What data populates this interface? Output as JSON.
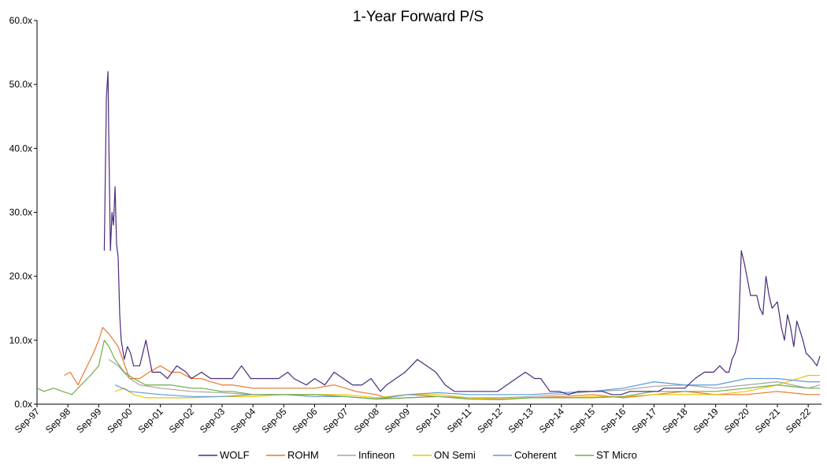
{
  "chart_data": {
    "type": "line",
    "title": "1-Year Forward P/S",
    "xlabel": "",
    "ylabel": "",
    "ylim": [
      0,
      60
    ],
    "yticks": [
      "0.0x",
      "10.0x",
      "20.0x",
      "30.0x",
      "40.0x",
      "50.0x",
      "60.0x"
    ],
    "ytick_values": [
      0,
      10,
      20,
      30,
      40,
      50,
      60
    ],
    "xlim": [
      1997.67,
      2023.1
    ],
    "xticks": [
      "Sep-97",
      "Sep-98",
      "Sep-99",
      "Sep-00",
      "Sep-01",
      "Sep-02",
      "Sep-03",
      "Sep-04",
      "Sep-05",
      "Sep-06",
      "Sep-07",
      "Sep-08",
      "Sep-09",
      "Sep-10",
      "Sep-11",
      "Sep-12",
      "Sep-13",
      "Sep-14",
      "Sep-15",
      "Sep-16",
      "Sep-17",
      "Sep-18",
      "Sep-19",
      "Sep-20",
      "Sep-21",
      "Sep-22"
    ],
    "xtick_values": [
      1997.67,
      1998.67,
      1999.67,
      2000.67,
      2001.67,
      2002.67,
      2003.67,
      2004.67,
      2005.67,
      2006.67,
      2007.67,
      2008.67,
      2009.67,
      2010.67,
      2011.67,
      2012.67,
      2013.67,
      2014.67,
      2015.67,
      2016.67,
      2017.67,
      2018.67,
      2019.67,
      2020.67,
      2021.67,
      2022.67
    ],
    "grid": false,
    "legend_position": "bottom",
    "series": [
      {
        "name": "WOLF",
        "color": "#4B2A7B",
        "x": [
          1999.85,
          1999.92,
          1999.97,
          2000.0,
          2000.05,
          2000.1,
          2000.15,
          2000.2,
          2000.25,
          2000.3,
          2000.35,
          2000.4,
          2000.5,
          2000.6,
          2000.7,
          2000.8,
          2000.9,
          2001.0,
          2001.2,
          2001.4,
          2001.67,
          2001.9,
          2002.2,
          2002.5,
          2002.67,
          2003.0,
          2003.3,
          2003.67,
          2004.0,
          2004.3,
          2004.6,
          2004.9,
          2005.2,
          2005.5,
          2005.8,
          2006.0,
          2006.4,
          2006.67,
          2007.0,
          2007.3,
          2007.6,
          2007.9,
          2008.2,
          2008.5,
          2008.8,
          2009.0,
          2009.3,
          2009.6,
          2009.8,
          2010.0,
          2010.3,
          2010.6,
          2010.9,
          2011.2,
          2011.5,
          2011.8,
          2012.0,
          2012.3,
          2012.6,
          2012.9,
          2013.2,
          2013.5,
          2013.8,
          2014.0,
          2014.3,
          2014.6,
          2014.9,
          2015.2,
          2015.5,
          2015.8,
          2016.0,
          2016.3,
          2016.6,
          2016.9,
          2017.2,
          2017.5,
          2017.8,
          2018.0,
          2018.2,
          2018.4,
          2018.67,
          2019.0,
          2019.3,
          2019.6,
          2019.8,
          2020.0,
          2020.1,
          2020.2,
          2020.3,
          2020.4,
          2020.5,
          2020.6,
          2020.8,
          2021.0,
          2021.1,
          2021.2,
          2021.3,
          2021.4,
          2021.5,
          2021.67,
          2021.8,
          2021.9,
          2022.0,
          2022.1,
          2022.2,
          2022.3,
          2022.5,
          2022.6,
          2022.8,
          2022.95,
          2023.05
        ],
        "values": [
          24,
          48,
          52,
          40,
          24,
          30,
          28,
          34,
          25,
          23,
          14,
          10,
          7,
          9,
          8,
          6,
          6,
          6,
          10,
          5,
          5,
          4,
          6,
          5,
          4,
          5,
          4,
          4,
          4,
          6,
          4,
          4,
          4,
          4,
          5,
          4,
          3,
          4,
          3,
          5,
          4,
          3,
          3,
          4,
          2,
          3,
          4,
          5,
          6,
          7,
          6,
          5,
          3,
          2,
          2,
          2,
          2,
          2,
          2,
          3,
          4,
          5,
          4,
          4,
          2,
          2,
          1.5,
          2,
          2,
          2,
          2,
          1.5,
          1.5,
          2,
          2,
          2,
          2,
          2.5,
          2.5,
          2.5,
          2.5,
          4,
          5,
          5,
          6,
          5,
          5,
          7,
          8,
          10,
          24,
          22,
          17,
          17,
          15,
          14,
          20,
          17,
          15,
          16,
          12,
          10,
          14,
          12,
          9,
          13,
          10,
          8,
          7,
          6,
          7.5
        ]
      },
      {
        "name": "ROHM",
        "color": "#E8782F",
        "x": [
          1998.55,
          1998.75,
          1999.0,
          1999.3,
          1999.5,
          1999.67,
          1999.8,
          2000.0,
          2000.3,
          2000.67,
          2001.0,
          2001.3,
          2001.67,
          2002.0,
          2002.3,
          2002.67,
          2003.0,
          2003.3,
          2003.67,
          2004.0,
          2004.67,
          2005.67,
          2006.67,
          2007.3,
          2007.67,
          2008.0,
          2008.67,
          2009.0,
          2009.67,
          2010.67,
          2011.67,
          2012.67,
          2013.67,
          2014.67,
          2015.67,
          2016.67,
          2017.67,
          2018.67,
          2019.67,
          2020.67,
          2021.67,
          2022.67,
          2023.05
        ],
        "values": [
          4.5,
          5,
          3,
          6,
          8,
          10,
          12,
          11,
          9,
          4,
          4,
          5,
          6,
          5,
          5,
          4,
          4,
          3.5,
          3,
          3,
          2.5,
          2.5,
          2.5,
          3,
          2.5,
          2,
          1.5,
          1,
          1.5,
          1.2,
          1,
          0.8,
          1,
          1.2,
          1.5,
          1,
          1.5,
          2,
          1.5,
          1.5,
          2,
          1.5,
          1.5
        ]
      },
      {
        "name": "Infineon",
        "color": "#A5A5A5",
        "x": [
          2000.0,
          2000.3,
          2000.67,
          2001.0,
          2001.67,
          2002.67,
          2003.67,
          2004.67,
          2005.67,
          2006.67,
          2007.67,
          2008.67,
          2009.67,
          2010.67,
          2011.67,
          2012.67,
          2013.67,
          2014.67,
          2015.67,
          2016.67,
          2017.67,
          2018.67,
          2019.67,
          2020.67,
          2021.67,
          2022.67,
          2023.05
        ],
        "values": [
          7,
          6,
          4,
          3,
          2.5,
          2,
          1.8,
          1.5,
          1.5,
          1.5,
          1.2,
          0.8,
          1,
          1.2,
          1,
          1,
          1.2,
          1.5,
          2,
          2.2,
          2.8,
          3,
          2.5,
          3,
          3.5,
          2.5,
          3
        ]
      },
      {
        "name": "ON Semi",
        "color": "#F2C200",
        "x": [
          2000.2,
          2000.5,
          2000.8,
          2001.2,
          2001.67,
          2002.67,
          2003.67,
          2004.67,
          2005.67,
          2006.67,
          2007.67,
          2008.67,
          2009.67,
          2010.67,
          2011.67,
          2012.67,
          2013.67,
          2014.67,
          2015.67,
          2016.67,
          2017.67,
          2018.67,
          2019.67,
          2020.67,
          2021.67,
          2022.67,
          2023.05
        ],
        "values": [
          2,
          2.5,
          1.5,
          1,
          1,
          1,
          1.2,
          1.2,
          1.5,
          1.5,
          1.5,
          1,
          1.5,
          1.5,
          1,
          0.8,
          1,
          1,
          1.2,
          1.2,
          1.5,
          1.5,
          1.5,
          2,
          3,
          4.5,
          4.5
        ]
      },
      {
        "name": "Coherent",
        "color": "#5B9BD5",
        "x": [
          2000.2,
          2000.67,
          2001.67,
          2002.67,
          2003.67,
          2004.67,
          2005.67,
          2006.67,
          2007.67,
          2008.67,
          2009.67,
          2010.67,
          2011.67,
          2012.67,
          2013.67,
          2014.67,
          2015.67,
          2016.67,
          2017.67,
          2018.67,
          2019.67,
          2020.67,
          2021.67,
          2022.67,
          2023.05
        ],
        "values": [
          3,
          2,
          1.5,
          1.2,
          1.2,
          1.5,
          1.5,
          1.2,
          1.2,
          0.8,
          1.5,
          1.8,
          1.5,
          1.5,
          1.5,
          1.8,
          2,
          2.5,
          3.5,
          3,
          3,
          4,
          4,
          3.5,
          3.5
        ]
      },
      {
        "name": "ST Micro",
        "color": "#70AD47",
        "x": [
          1997.67,
          1997.9,
          1998.2,
          1998.5,
          1998.8,
          1999.1,
          1999.4,
          1999.67,
          1999.85,
          2000.0,
          2000.2,
          2000.5,
          2000.8,
          2001.2,
          2001.67,
          2002.0,
          2002.67,
          2003.0,
          2003.67,
          2004.0,
          2004.67,
          2005.67,
          2006.67,
          2007.67,
          2008.67,
          2009.67,
          2010.67,
          2011.67,
          2012.67,
          2013.67,
          2014.67,
          2015.67,
          2016.67,
          2017.67,
          2018.67,
          2019.67,
          2020.67,
          2021.67,
          2022.67,
          2023.05
        ],
        "values": [
          2.5,
          2,
          2.5,
          2,
          1.5,
          3,
          4.5,
          6,
          10,
          9,
          7,
          5,
          4,
          3,
          3,
          3,
          2.5,
          2.5,
          2,
          2,
          1.5,
          1.5,
          1.5,
          1.2,
          0.8,
          1,
          1.2,
          0.8,
          0.7,
          1,
          1,
          1,
          1.2,
          2,
          2,
          2,
          2.5,
          3,
          2.5,
          2.5
        ]
      }
    ]
  }
}
